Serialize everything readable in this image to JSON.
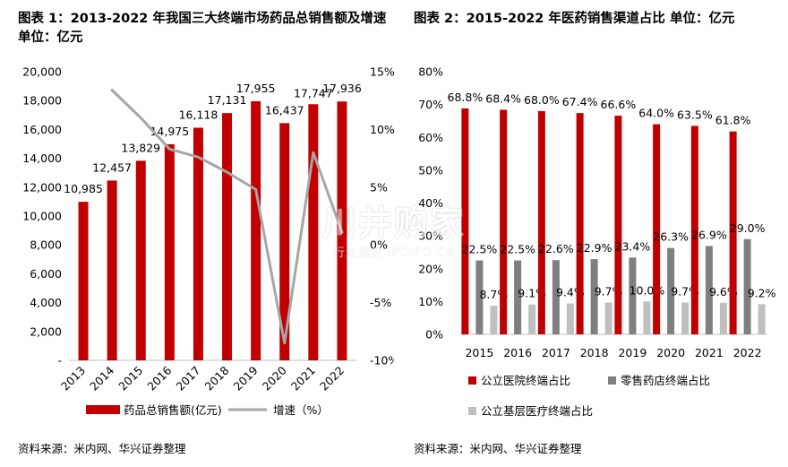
{
  "left": {
    "title_line1": "图表 1：2013-2022 年我国三大终端市场药品总销售额及增速",
    "title_line2": "单位：亿元",
    "source": "资料来源：米内网、华兴证券整理",
    "chart_data": {
      "type": "bar",
      "categories": [
        "2013",
        "2014",
        "2015",
        "2016",
        "2017",
        "2018",
        "2019",
        "2020",
        "2021",
        "2022"
      ],
      "series": [
        {
          "name": "药品总销售额(亿元)",
          "type": "bar",
          "axis": "left",
          "color": "#C00000",
          "values": [
            10985,
            12457,
            13829,
            14975,
            16118,
            17131,
            17955,
            16437,
            17747,
            17936
          ],
          "labels": [
            "10,985",
            "12,457",
            "13,829",
            "14,975",
            "16,118",
            "17,131",
            "17,955",
            "16,437",
            "17,747",
            "17,936"
          ]
        },
        {
          "name": "增速（%）",
          "type": "line",
          "axis": "right",
          "color": "#A6A6A6",
          "values": [
            null,
            13.4,
            11.0,
            8.3,
            7.6,
            6.3,
            4.8,
            -8.5,
            8.0,
            1.1
          ]
        }
      ],
      "y_left": {
        "min": 0,
        "max": 20000,
        "ticks": [
          "-",
          "2,000",
          "4,000",
          "6,000",
          "8,000",
          "10,000",
          "12,000",
          "14,000",
          "16,000",
          "18,000",
          "20,000"
        ]
      },
      "y_right": {
        "min": -10,
        "max": 15,
        "ticks": [
          "-10%",
          "-5%",
          "0%",
          "5%",
          "10%",
          "15%"
        ]
      },
      "grid": false,
      "legend_position": "bottom"
    }
  },
  "right": {
    "title": "图表 2：2015-2022 年医药销售渠道占比 单位：亿元",
    "source": "资料来源：米内网、华兴证券整理",
    "chart_data": {
      "type": "bar",
      "categories": [
        "2015",
        "2016",
        "2017",
        "2018",
        "2019",
        "2020",
        "2021",
        "2022"
      ],
      "series": [
        {
          "name": "公立医院终端占比",
          "color": "#C00000",
          "values": [
            68.8,
            68.4,
            68.0,
            67.4,
            66.6,
            64.0,
            63.5,
            61.8
          ],
          "labels": [
            "68.8%",
            "68.4%",
            "68.0%",
            "67.4%",
            "66.6%",
            "64.0%",
            "63.5%",
            "61.8%"
          ]
        },
        {
          "name": "零售药店终端占比",
          "color": "#7F7F7F",
          "values": [
            22.5,
            22.5,
            22.6,
            22.9,
            23.4,
            26.3,
            26.9,
            29.0
          ],
          "labels": [
            "22.5%",
            "22.5%",
            "22.6%",
            "22.9%",
            "23.4%",
            "26.3%",
            "26.9%",
            "29.0%"
          ]
        },
        {
          "name": "公立基层医疗终端占比",
          "color": "#BFBFBF",
          "values": [
            8.7,
            9.1,
            9.4,
            9.7,
            10.0,
            9.7,
            9.6,
            9.2
          ],
          "labels": [
            "8.7%",
            "9.1%",
            "9.4%",
            "9.7%",
            "10.0%",
            "9.7%",
            "9.6%",
            "9.2%"
          ]
        }
      ],
      "y": {
        "min": 0,
        "max": 80,
        "ticks": [
          "0%",
          "10%",
          "20%",
          "30%",
          "40%",
          "50%",
          "60%",
          "70%",
          "80%"
        ]
      },
      "grid": false,
      "legend_position": "bottom"
    }
  },
  "watermark": {
    "main": "川井购家",
    "sub": "行业报告 IPOIPO.CN"
  }
}
